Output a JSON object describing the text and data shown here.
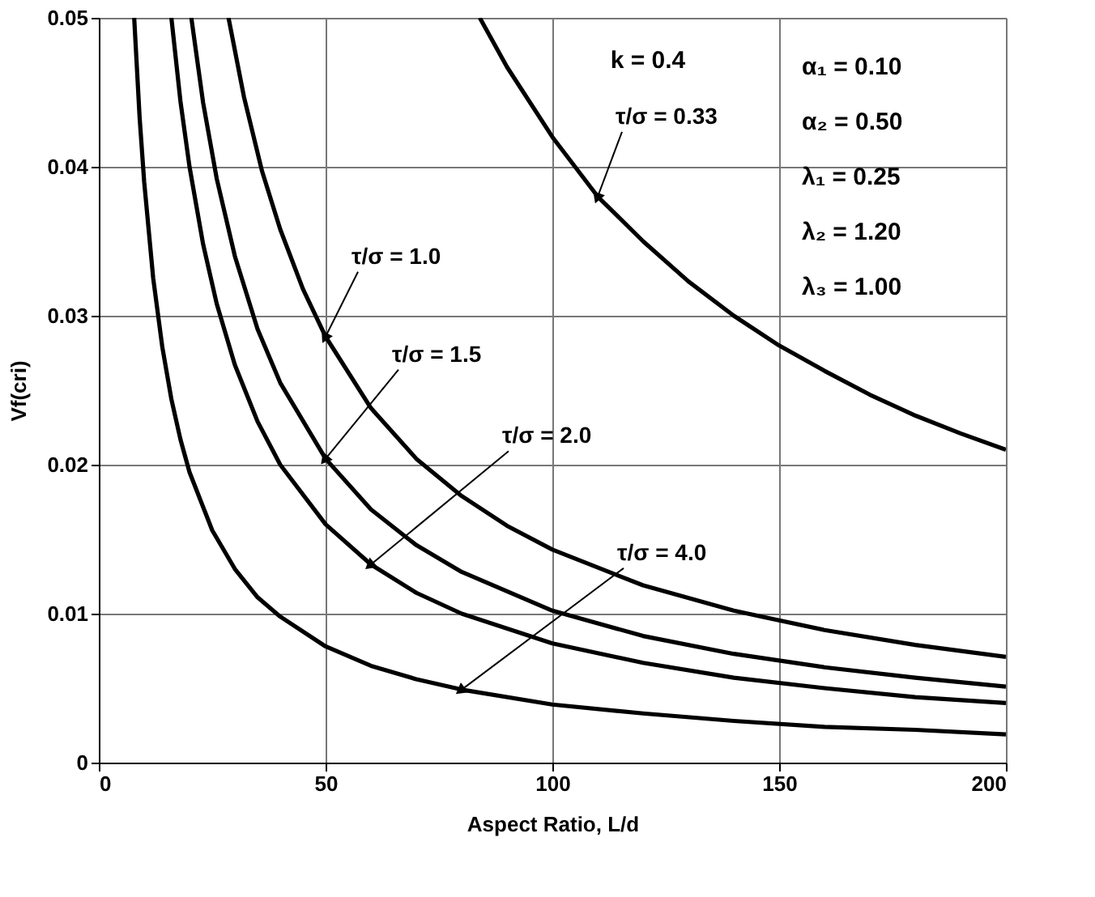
{
  "chart_data": {
    "type": "line",
    "xlabel": "Aspect Ratio, L/d",
    "ylabel": "Vf(cri)",
    "xlim": [
      0,
      200
    ],
    "ylim": [
      0,
      0.05
    ],
    "xticks": [
      0,
      50,
      100,
      150,
      200
    ],
    "yticks": [
      0,
      0.01,
      0.02,
      0.03,
      0.04,
      0.05
    ],
    "grid": true,
    "series": [
      {
        "color": "#000000",
        "x": [
          84,
          90,
          100,
          110,
          120,
          130,
          140,
          150,
          160,
          170,
          180,
          190,
          200
        ],
        "values": [
          0.05,
          0.0467,
          0.042,
          0.038,
          0.035,
          0.0323,
          0.03,
          0.028,
          0.0263,
          0.0247,
          0.0233,
          0.0221,
          0.021
        ]
      },
      {
        "color": "#000000",
        "x": [
          28.6,
          32,
          36,
          40,
          45,
          50,
          60,
          70,
          80,
          90,
          100,
          120,
          140,
          160,
          180,
          200
        ],
        "values": [
          0.05,
          0.0447,
          0.0397,
          0.0358,
          0.0318,
          0.0286,
          0.0238,
          0.0204,
          0.0179,
          0.0159,
          0.0143,
          0.0119,
          0.0102,
          0.0089,
          0.0079,
          0.0071
        ]
      },
      {
        "color": "#000000",
        "x": [
          20.4,
          23,
          26,
          30,
          35,
          40,
          50,
          60,
          70,
          80,
          100,
          120,
          140,
          160,
          180,
          200
        ],
        "values": [
          0.05,
          0.0443,
          0.0392,
          0.034,
          0.0291,
          0.0255,
          0.0204,
          0.017,
          0.0146,
          0.0128,
          0.0102,
          0.0085,
          0.0073,
          0.0064,
          0.0057,
          0.0051
        ]
      },
      {
        "color": "#000000",
        "x": [
          16,
          18,
          20,
          23,
          26,
          30,
          35,
          40,
          50,
          60,
          70,
          80,
          100,
          120,
          140,
          160,
          180,
          200
        ],
        "values": [
          0.05,
          0.0444,
          0.04,
          0.0348,
          0.0308,
          0.0267,
          0.0229,
          0.02,
          0.016,
          0.0133,
          0.0114,
          0.01,
          0.008,
          0.0067,
          0.0057,
          0.005,
          0.0044,
          0.004
        ]
      },
      {
        "color": "#000000",
        "x": [
          7.8,
          9,
          10,
          12,
          14,
          16,
          18,
          20,
          25,
          30,
          35,
          40,
          50,
          60,
          70,
          80,
          100,
          120,
          140,
          160,
          180,
          200
        ],
        "values": [
          0.05,
          0.0433,
          0.039,
          0.0325,
          0.0279,
          0.0244,
          0.0217,
          0.0195,
          0.0156,
          0.013,
          0.0111,
          0.0098,
          0.0078,
          0.0065,
          0.0056,
          0.0049,
          0.0039,
          0.0033,
          0.0028,
          0.0024,
          0.0022,
          0.0019
        ]
      }
    ],
    "annotations": [
      {
        "text": "τ/σ = 0.33",
        "x": 110,
        "y": 0.038
      },
      {
        "text": "τ/σ = 1.0",
        "x": 50,
        "y": 0.0286
      },
      {
        "text": "τ/σ = 1.5",
        "x": 50,
        "y": 0.0204
      },
      {
        "text": "τ/σ = 2.0",
        "x": 60,
        "y": 0.0133
      },
      {
        "text": "τ/σ = 4.0",
        "x": 80,
        "y": 0.0049
      },
      "k = 0.4",
      "α₁ = 0.10",
      "α₂ = 0.50",
      "λ₁ = 0.25",
      "λ₂ = 1.20",
      "λ₃ = 1.00"
    ]
  }
}
